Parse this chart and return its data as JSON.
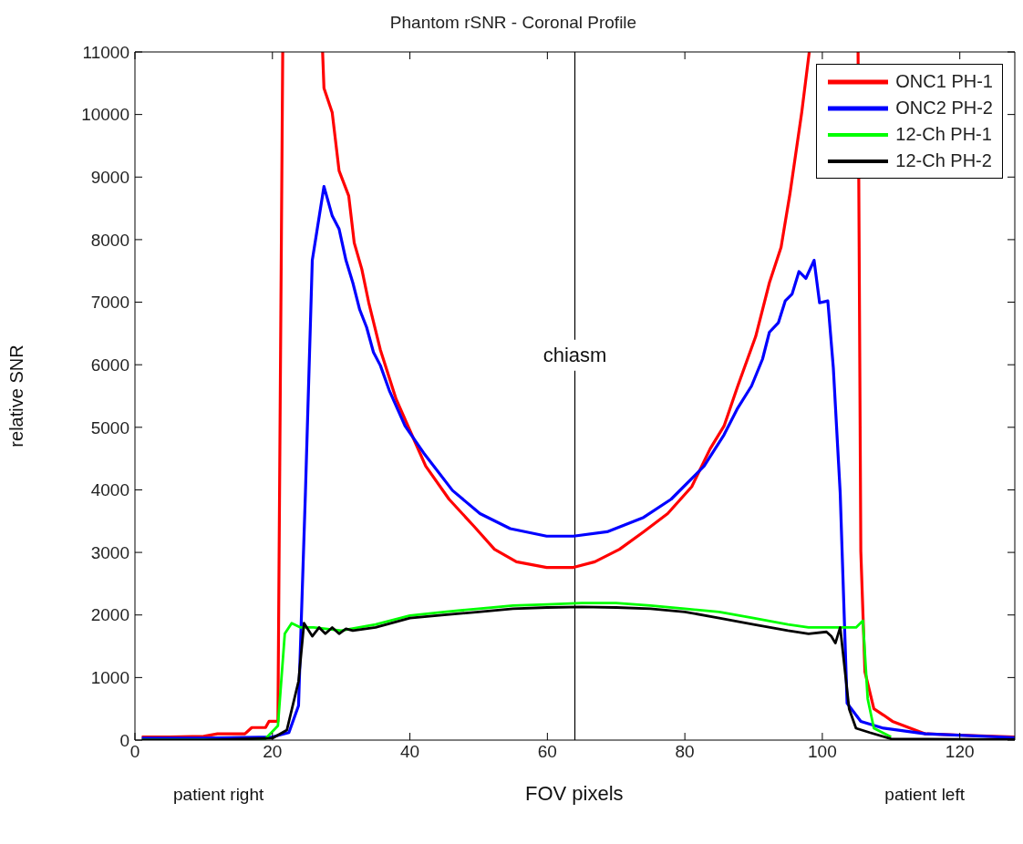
{
  "chart_data": {
    "type": "line",
    "title": "Phantom rSNR - Coronal Profile",
    "xlabel": "FOV pixels",
    "ylabel": "relative SNR",
    "annotations": [
      "patient right",
      "patient left"
    ],
    "xlim": [
      0,
      128
    ],
    "ylim": [
      0,
      11000
    ],
    "xticks": [
      0,
      20,
      40,
      60,
      80,
      100,
      120
    ],
    "yticks": [
      0,
      1000,
      2000,
      3000,
      4000,
      5000,
      6000,
      7000,
      8000,
      9000,
      10000,
      11000
    ],
    "grid": false,
    "legend": "top right",
    "marker": "none",
    "line_style": "solid",
    "ref_lines": [
      {
        "axis": "x",
        "value": 64,
        "label": "chiasm",
        "color": "#000000"
      }
    ],
    "series": [
      {
        "name": "ONC1 PH-1",
        "color": "#ff0000",
        "x": [
          1,
          5,
          10,
          12,
          16,
          17,
          19,
          19.5,
          20.8,
          21.5,
          null,
          27.3,
          27.5,
          28.7,
          29.7,
          31.1,
          31.9,
          33,
          34,
          35.7,
          38,
          40,
          42.3,
          45.7,
          49.3,
          52.3,
          55.5,
          59.9,
          63.8,
          66.9,
          70.5,
          74,
          77.5,
          81,
          83.7,
          85.7,
          87.7,
          90.3,
          92.3,
          94,
          95.3,
          97,
          98.1,
          null,
          105.2,
          105.6,
          106.2,
          107.5,
          108.9,
          110.2,
          115,
          120,
          128
        ],
        "values": [
          50,
          50,
          60,
          100,
          100,
          200,
          200,
          300,
          300,
          11000,
          null,
          11000,
          10420,
          10030,
          9100,
          8700,
          7950,
          7530,
          7000,
          6240,
          5450,
          4950,
          4380,
          3850,
          3420,
          3050,
          2850,
          2760,
          2760,
          2850,
          3050,
          3330,
          3620,
          4050,
          4660,
          5020,
          5660,
          6450,
          7310,
          7880,
          8740,
          10030,
          11000,
          null,
          11000,
          3020,
          1090,
          500,
          400,
          300,
          100,
          80,
          50
        ]
      },
      {
        "name": "ONC2 PH-2",
        "color": "#0000ff",
        "x": [
          1,
          10,
          20,
          22.4,
          23.8,
          24.8,
          25.8,
          27.5,
          28.7,
          29.7,
          30.7,
          31.7,
          32.7,
          33.7,
          34.7,
          35.7,
          37,
          39.3,
          42,
          46.2,
          50.2,
          54.6,
          59.9,
          63.8,
          68.7,
          74,
          78,
          82.8,
          85.7,
          87.7,
          89.7,
          91.3,
          92.3,
          93.6,
          94.6,
          95.6,
          96.6,
          97.6,
          98.8,
          99.6,
          100.8,
          101.6,
          102.6,
          103.6,
          105.6,
          108.9,
          115,
          128
        ],
        "values": [
          30,
          30,
          50,
          120,
          550,
          3950,
          7670,
          8850,
          8380,
          8170,
          7670,
          7310,
          6880,
          6600,
          6200,
          5990,
          5590,
          5020,
          4590,
          3990,
          3620,
          3380,
          3260,
          3260,
          3330,
          3560,
          3850,
          4380,
          4880,
          5310,
          5660,
          6090,
          6520,
          6670,
          7020,
          7130,
          7490,
          7380,
          7670,
          6990,
          7020,
          5950,
          3950,
          590,
          300,
          190,
          100,
          40
        ]
      },
      {
        "name": "12-Ch PH-1",
        "color": "#00ff00",
        "x": [
          1,
          10,
          18.8,
          20.8,
          21.8,
          22.8,
          24.1,
          26,
          30,
          35,
          40,
          45,
          50,
          55,
          60,
          65,
          70,
          75,
          80,
          85,
          90,
          95,
          98,
          102,
          104.9,
          105.9,
          106.6,
          107.5,
          110
        ],
        "values": [
          0,
          0,
          0,
          230,
          1700,
          1870,
          1800,
          1800,
          1750,
          1850,
          1990,
          2050,
          2100,
          2150,
          2170,
          2190,
          2190,
          2150,
          2100,
          2050,
          1950,
          1850,
          1800,
          1800,
          1800,
          1910,
          660,
          190,
          50
        ]
      },
      {
        "name": "12-Ch PH-2",
        "color": "#000000",
        "x": [
          1,
          10,
          20,
          22.1,
          23.8,
          24.6,
          25.8,
          26.8,
          27.7,
          28.7,
          29.7,
          30.7,
          31.7,
          35,
          40,
          45,
          50,
          55,
          60,
          65,
          70,
          75,
          80,
          85,
          90,
          95,
          98,
          100.6,
          101.3,
          101.9,
          102.6,
          103.9,
          104.9,
          106.9,
          110,
          128
        ],
        "values": [
          0,
          0,
          30,
          160,
          940,
          1870,
          1660,
          1800,
          1700,
          1800,
          1700,
          1780,
          1750,
          1800,
          1950,
          2000,
          2050,
          2100,
          2120,
          2130,
          2120,
          2100,
          2050,
          1950,
          1850,
          1750,
          1700,
          1730,
          1660,
          1550,
          1800,
          500,
          190,
          120,
          20,
          10
        ]
      }
    ]
  }
}
